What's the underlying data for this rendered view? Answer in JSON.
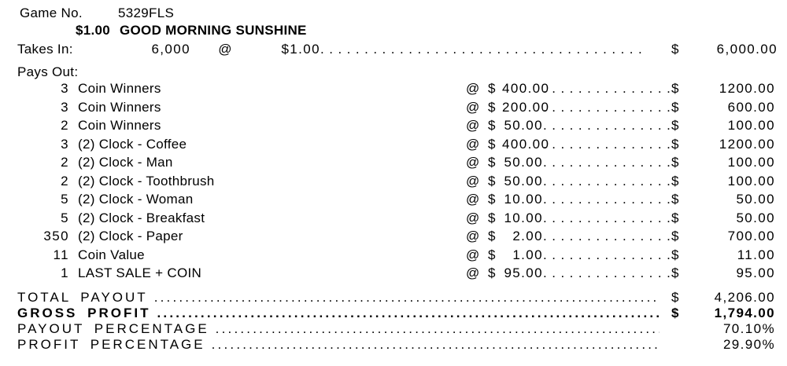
{
  "header": {
    "game_no_label": "Game No.",
    "game_no_value": "5329FLS",
    "ticket_price": "$1.00",
    "game_title": "GOOD MORNING SUNSHINE"
  },
  "takes_in": {
    "label": "Takes In:",
    "quantity": "6,000",
    "at_symbol": "@",
    "unit_price": "$1.00",
    "currency_symbol": "$",
    "total": "6,000.00"
  },
  "pays_out": {
    "label": "Pays Out:",
    "at_symbol": "@",
    "currency_symbol": "$",
    "rows": [
      {
        "qty": "3",
        "item": "Coin Winners",
        "unit": "400.00",
        "total": "1200.00"
      },
      {
        "qty": "3",
        "item": "Coin Winners",
        "unit": "200.00",
        "total": "600.00"
      },
      {
        "qty": "2",
        "item": "Coin Winners",
        "unit": "50.00",
        "total": "100.00"
      },
      {
        "qty": "3",
        "item": "(2) Clock - Coffee",
        "unit": "400.00",
        "total": "1200.00"
      },
      {
        "qty": "2",
        "item": "(2) Clock - Man",
        "unit": "50.00",
        "total": "100.00"
      },
      {
        "qty": "2",
        "item": "(2) Clock - Toothbrush",
        "unit": "50.00",
        "total": "100.00"
      },
      {
        "qty": "5",
        "item": "(2) Clock - Woman",
        "unit": "10.00",
        "total": "50.00"
      },
      {
        "qty": "5",
        "item": "(2) Clock - Breakfast",
        "unit": "10.00",
        "total": "50.00"
      },
      {
        "qty": "350",
        "item": "(2) Clock - Paper",
        "unit": "2.00",
        "total": "700.00"
      },
      {
        "qty": "11",
        "item": "Coin Value",
        "unit": "1.00",
        "total": "11.00"
      },
      {
        "qty": "1",
        "item": "LAST SALE + COIN",
        "unit": "95.00",
        "total": "95.00"
      }
    ]
  },
  "summary": {
    "rows": [
      {
        "label": "TOTAL PAYOUT",
        "currency": "$",
        "value": "4,206.00",
        "bold": false
      },
      {
        "label": "GROSS PROFIT",
        "currency": "$",
        "value": "1,794.00",
        "bold": true
      },
      {
        "label": "PAYOUT PERCENTAGE",
        "currency": "",
        "value": "70.10%",
        "bold": false
      },
      {
        "label": "PROFIT PERCENTAGE",
        "currency": "",
        "value": "29.90%",
        "bold": false
      }
    ]
  },
  "colors": {
    "ink": "#000000",
    "paper": "#ffffff"
  }
}
